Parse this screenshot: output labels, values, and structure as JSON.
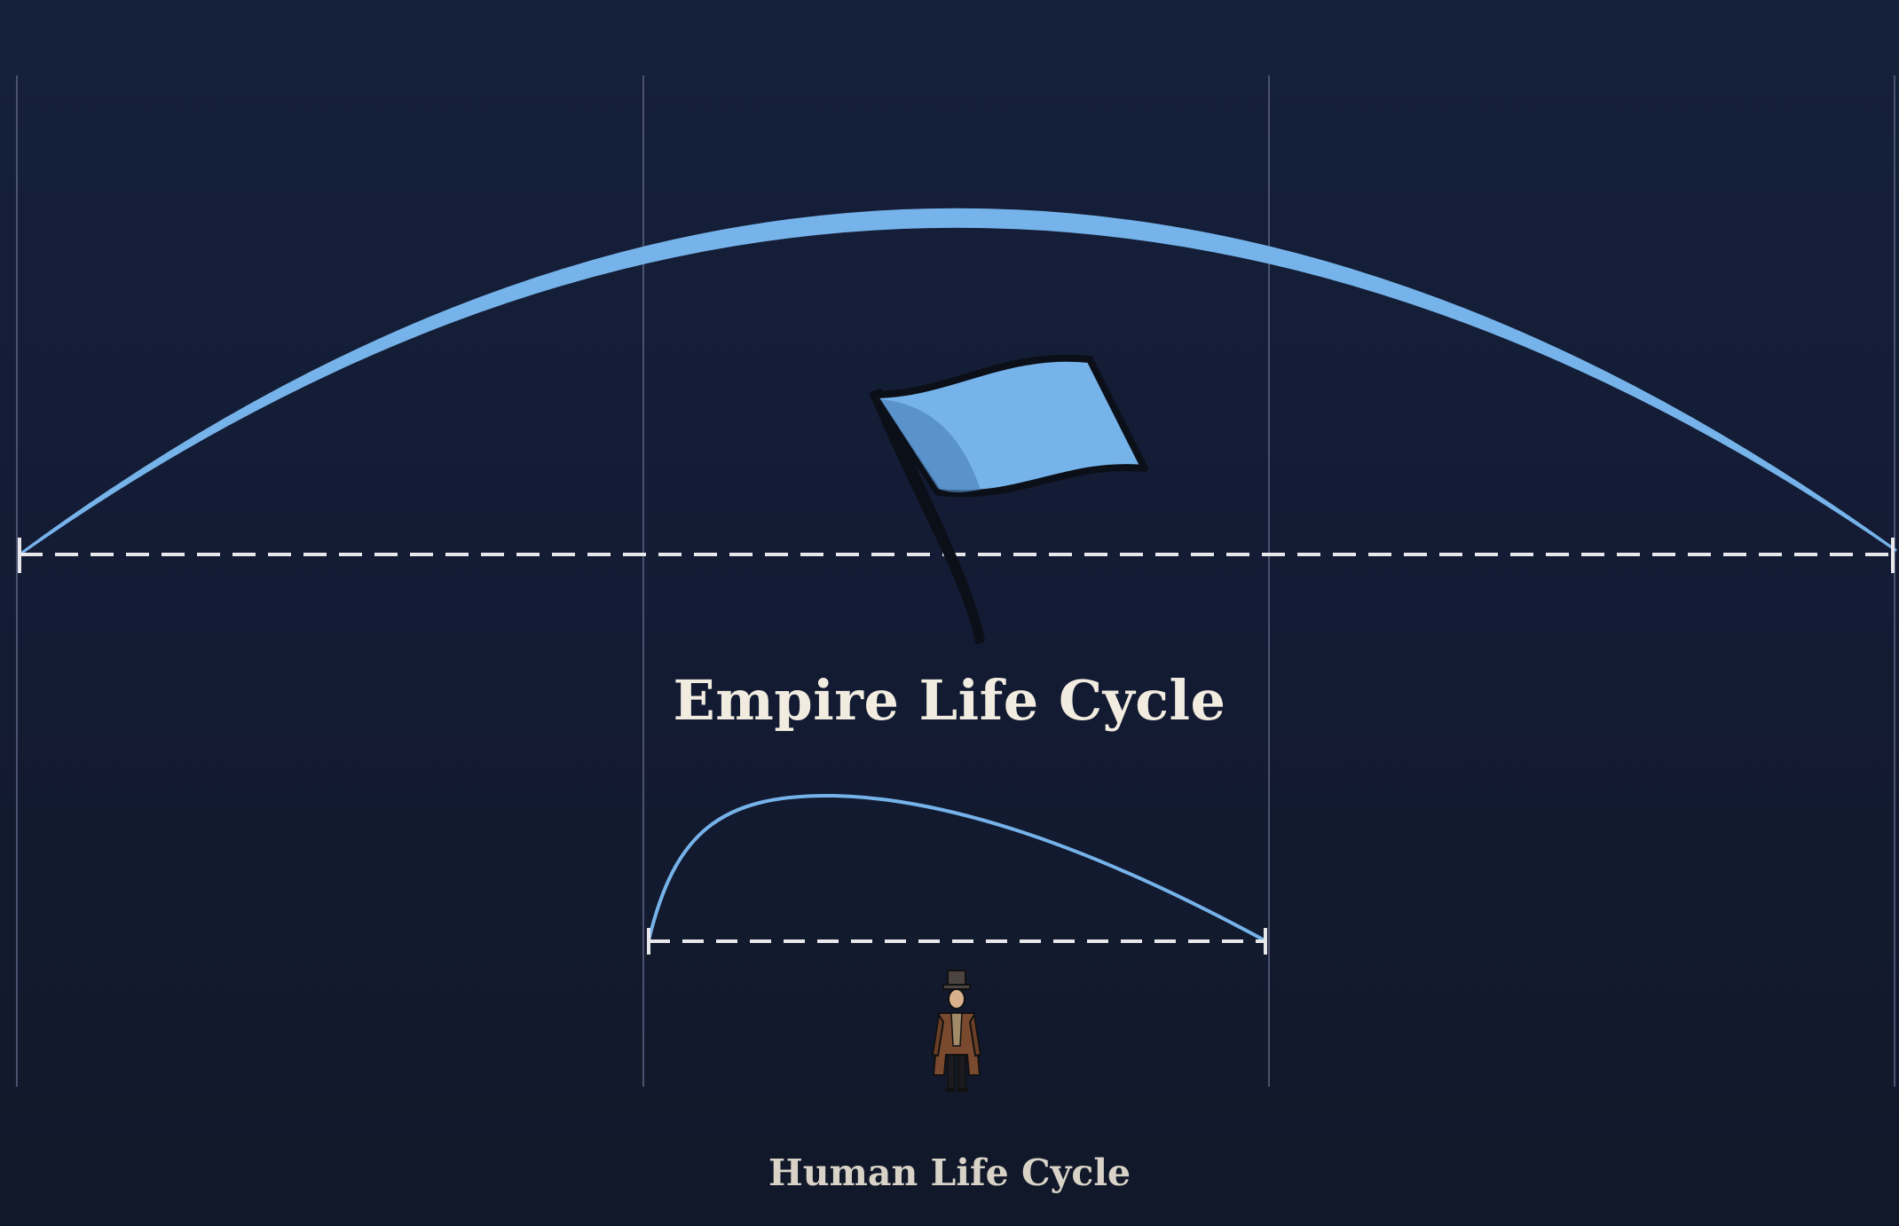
{
  "diagram": {
    "empire_cycle": {
      "label": "Empire Life Cycle",
      "icon": "flag-icon"
    },
    "human_cycle": {
      "label": "Human Life Cycle",
      "icon": "person-figure-icon"
    }
  },
  "colors": {
    "background": "#141c33",
    "arc": "#76b3ea",
    "arc_shadow": "#5f9fdb",
    "dashed_line": "#e8e8ec",
    "grid_line": "#4a5270",
    "title_text": "#f2ece0",
    "subtitle_text": "#d9d3c7",
    "coat": "#7a4a2e"
  }
}
